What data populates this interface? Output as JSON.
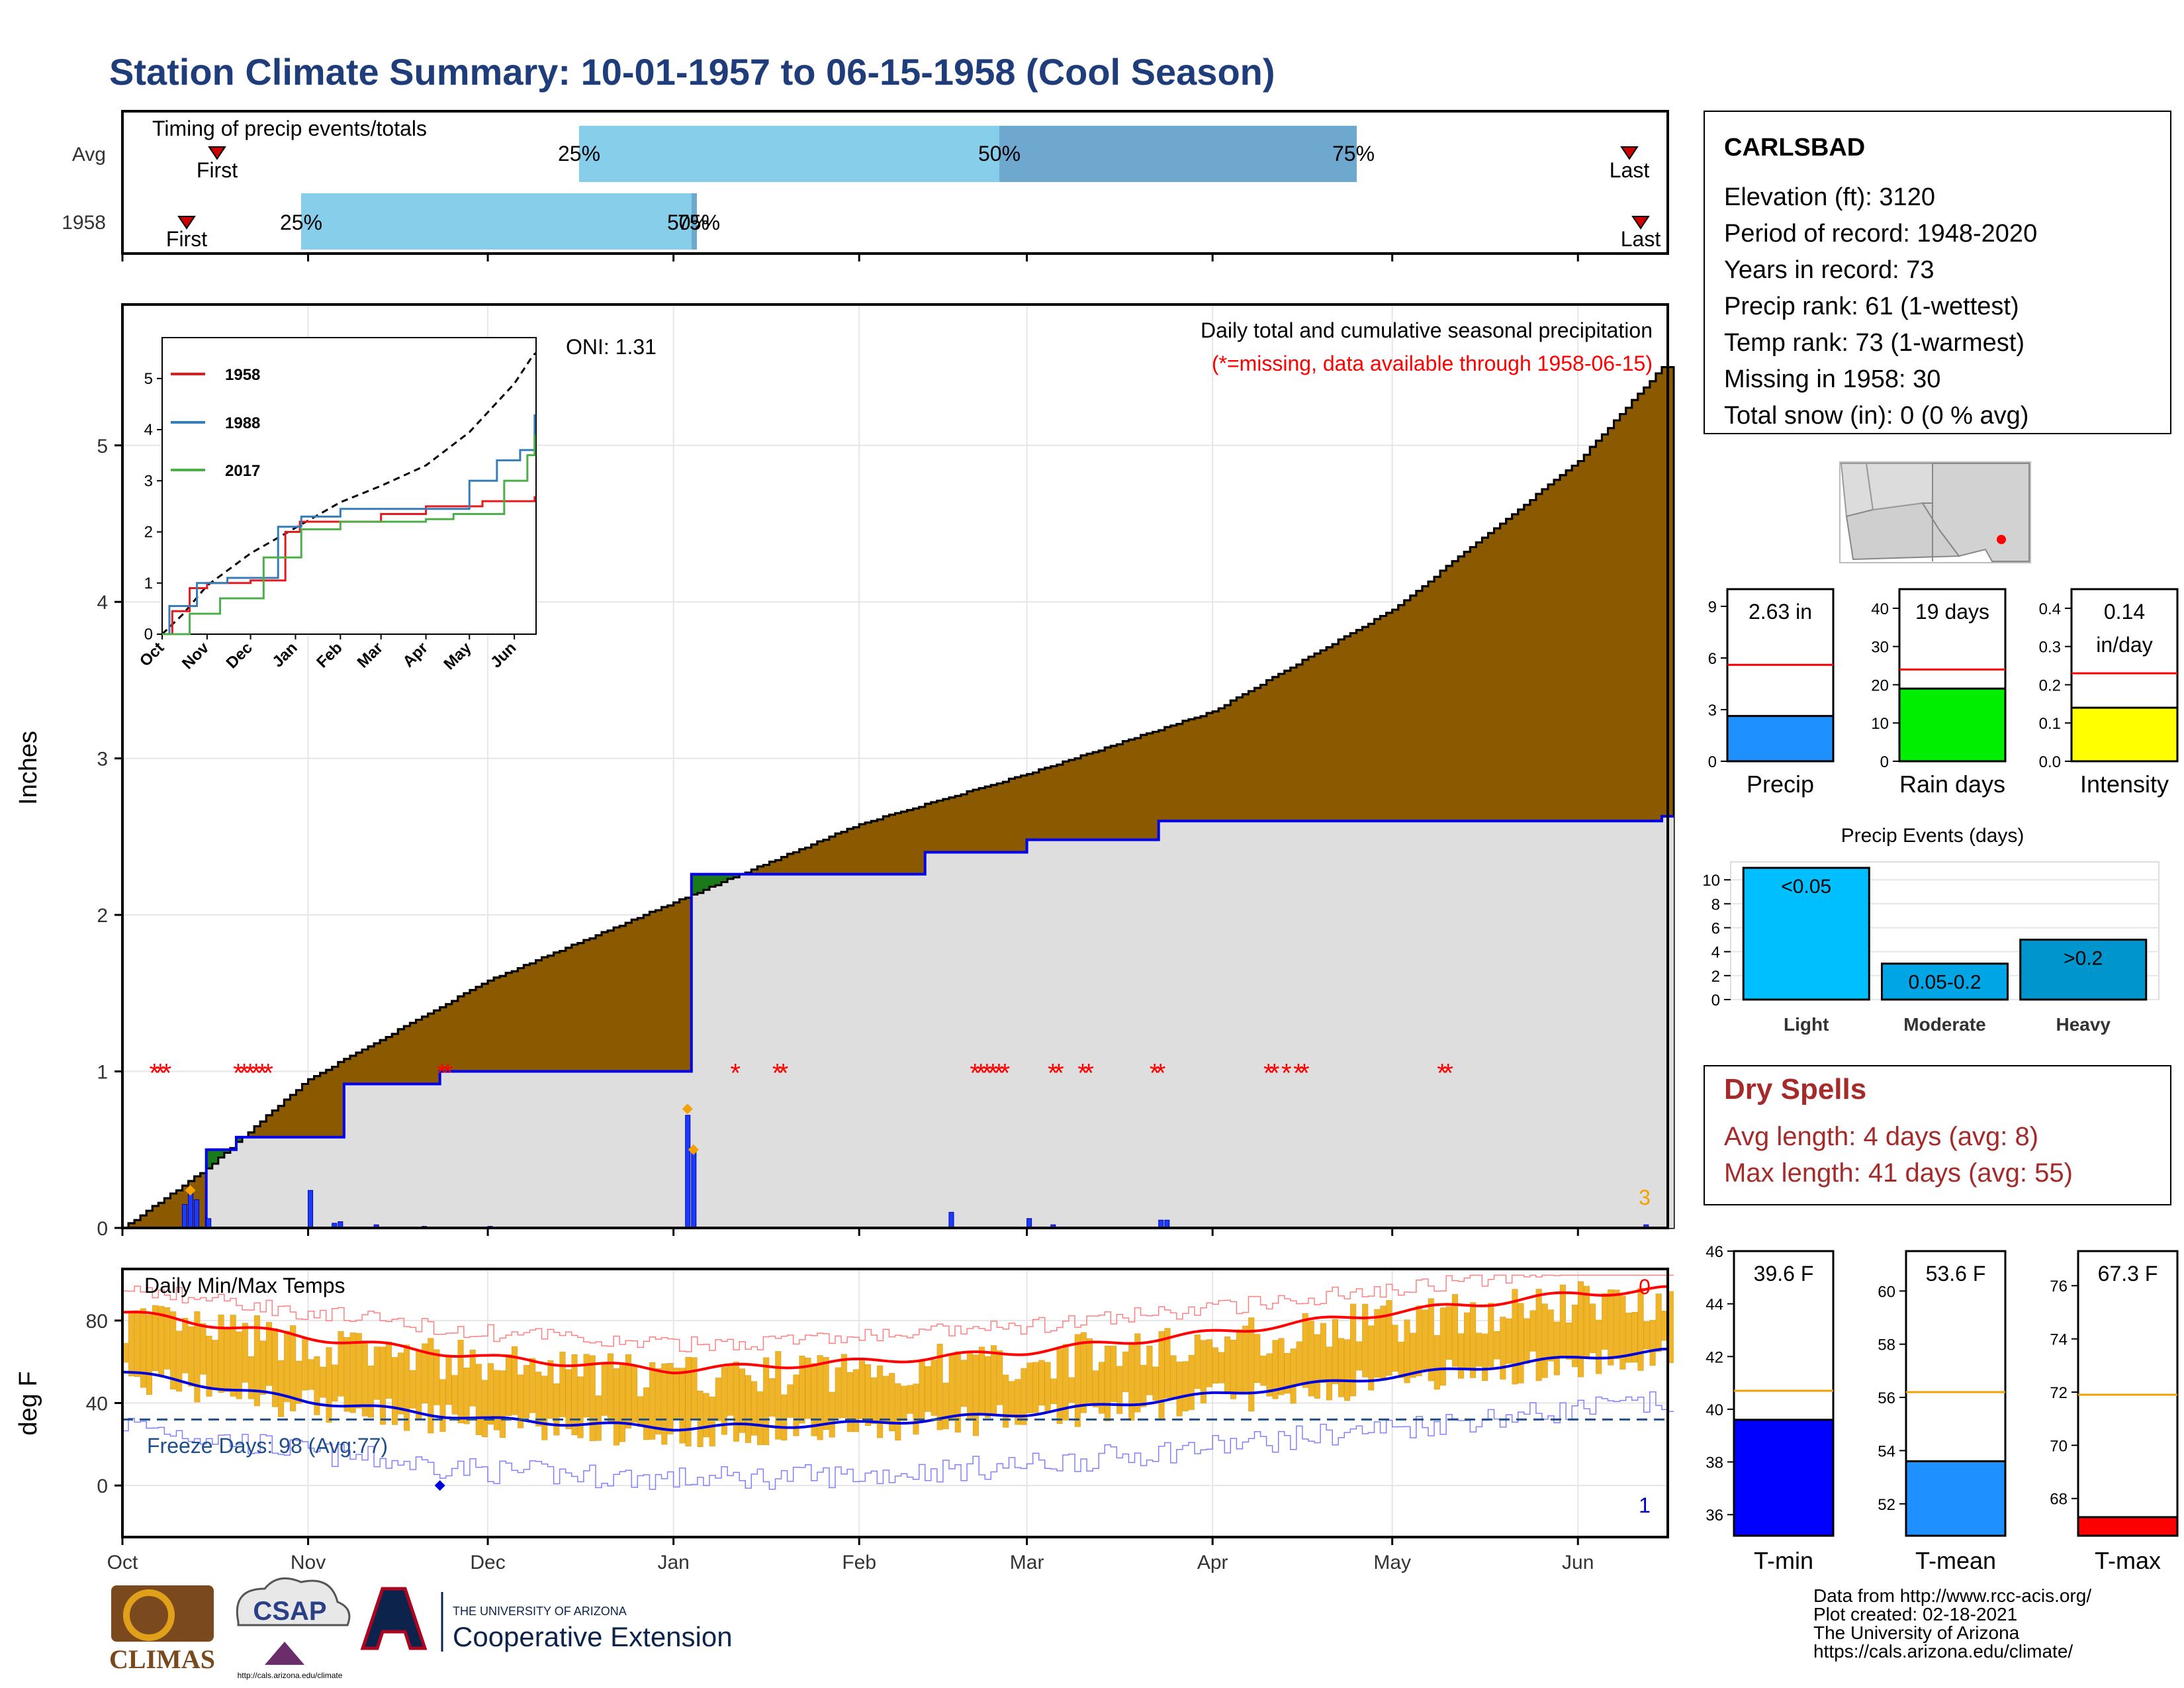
{
  "title": "Station Climate Summary: 10-01-1957 to 06-15-1958 (Cool Season)",
  "timing": {
    "label": "Timing of precip events/totals",
    "rows": [
      {
        "name": "Avg",
        "first": "First",
        "last": "Last",
        "p25_label": "25%",
        "p50_label": "50%",
        "p75_label": "75%"
      },
      {
        "name": "1958",
        "first": "First",
        "last": "Last",
        "p25_label": "25%",
        "p50_label": "50%",
        "p75_label": "75%"
      }
    ]
  },
  "station": {
    "name": "CARLSBAD",
    "lines": [
      "Elevation (ft): 3120",
      "Period of record: 1948-2020",
      "Years in record: 73",
      "Precip rank: 61 (1-wettest)",
      "Temp rank: 73 (1-warmest)",
      "Missing in 1958: 30",
      "Total snow (in): 0 (0 % avg)"
    ]
  },
  "precip_panel": {
    "ylabel": "Inches",
    "oni": "ONI: 1.31",
    "note1": "Daily total and cumulative seasonal precipitation",
    "note2": "(*=missing, data available through 1958-06-15)",
    "count_label": "3",
    "yticks": [
      "0",
      "1",
      "2",
      "3",
      "4",
      "5"
    ]
  },
  "inset": {
    "legend": [
      "1958",
      "1988",
      "2017"
    ],
    "legend_colors": [
      "#e41a1c",
      "#377eb8",
      "#4daf4a"
    ],
    "yticks": [
      "0",
      "1",
      "2",
      "3",
      "4",
      "5"
    ],
    "xticks": [
      "Oct",
      "Nov",
      "Dec",
      "Jan",
      "Feb",
      "Mar",
      "Apr",
      "May",
      "Jun"
    ]
  },
  "temp_panel": {
    "ylabel": "deg F",
    "title": "Daily Min/Max Temps",
    "freeze": "Freeze Days: 98 (Avg:77)",
    "count_top": "0",
    "count_bottom": "1",
    "yticks": [
      "0",
      "40",
      "80"
    ]
  },
  "x_months": [
    "Oct",
    "Nov",
    "Dec",
    "Jan",
    "Feb",
    "Mar",
    "Apr",
    "May",
    "Jun"
  ],
  "mini_bars": [
    {
      "label": "Precip",
      "value_label": "2.63 in",
      "value": 2.63,
      "avg": 5.6,
      "yticks": [
        "0",
        "3",
        "6",
        "9"
      ],
      "ymax": 10,
      "color": "#1e90ff"
    },
    {
      "label": "Rain days",
      "value_label": "19 days",
      "value": 19,
      "avg": 24,
      "yticks": [
        "0",
        "10",
        "20",
        "30",
        "40"
      ],
      "ymax": 45,
      "color": "#00ee00"
    },
    {
      "label": "Intensity",
      "value_label": "0.14",
      "value_label2": "in/day",
      "value": 0.14,
      "avg": 0.23,
      "yticks": [
        "0.0",
        "0.1",
        "0.2",
        "0.3",
        "0.4"
      ],
      "ymax": 0.45,
      "color": "#ffff00"
    }
  ],
  "precip_events": {
    "title": "Precip Events (days)",
    "categories": [
      "Light",
      "Moderate",
      "Heavy"
    ],
    "labels": [
      "<0.05",
      "0.05-0.2",
      ">0.2"
    ],
    "values": [
      11,
      3,
      5
    ],
    "yticks": [
      "0",
      "2",
      "4",
      "6",
      "8",
      "10"
    ],
    "colors": [
      "#00bfff",
      "#00a5e6",
      "#0095cc"
    ]
  },
  "dry_spells": {
    "title": "Dry Spells",
    "avg": "Avg length: 4 days (avg: 8)",
    "max": "Max length: 41 days (avg: 55)"
  },
  "temp_bars": [
    {
      "label": "T-min",
      "value_label": "39.6 F",
      "value": 39.6,
      "avg": 40.7,
      "ymin": 35.2,
      "ymax": 46,
      "yticks": [
        "36",
        "38",
        "40",
        "42",
        "44",
        "46"
      ],
      "color": "#0000ff"
    },
    {
      "label": "T-mean",
      "value_label": "53.6 F",
      "value": 53.6,
      "avg": 56.2,
      "ymin": 50.8,
      "ymax": 61.5,
      "yticks": [
        "52",
        "54",
        "56",
        "58",
        "60"
      ],
      "color": "#1e90ff"
    },
    {
      "label": "T-max",
      "value_label": "67.3 F",
      "value": 67.3,
      "avg": 71.9,
      "ymin": 66.6,
      "ymax": 77.3,
      "yticks": [
        "68",
        "70",
        "72",
        "74",
        "76"
      ],
      "color": "#ff0000"
    }
  ],
  "credits": [
    "Data from http://www.rcc-acis.org/",
    "Plot created: 02-18-2021",
    "The University of Arizona",
    "https://cals.arizona.edu/climate/"
  ],
  "logos": {
    "climas": "CLIMAS",
    "csap": "CSAP",
    "csap_url": "http://cals.arizona.edu/climate",
    "ua_small": "THE UNIVERSITY OF ARIZONA",
    "ua_big": "Cooperative Extension"
  },
  "chart_data": [
    {
      "type": "area",
      "title": "Daily total and cumulative seasonal precipitation",
      "ylabel": "Inches",
      "ylim": [
        0,
        5.9
      ],
      "x_range": [
        "1957-10-01",
        "1958-06-15"
      ],
      "series": [
        {
          "name": "Avg",
          "x": [
            "1957-10-01",
            "1957-10-15",
            "1957-11-01",
            "1957-12-01",
            "1958-01-01",
            "1958-02-01",
            "1958-03-01",
            "1958-04-01",
            "1958-05-01",
            "1958-06-01",
            "1958-06-15"
          ],
          "values": [
            0,
            0.38,
            0.95,
            1.58,
            2.08,
            2.58,
            2.9,
            3.3,
            3.95,
            4.9,
            5.5
          ]
        },
        {
          "name": "1958",
          "x": [
            "1957-10-01",
            "1957-10-12",
            "1957-10-15",
            "1957-10-20",
            "1957-11-01",
            "1957-11-07",
            "1957-11-23",
            "1958-01-03",
            "1958-01-04",
            "1958-01-10",
            "1958-02-12",
            "1958-03-01",
            "1958-03-23",
            "1958-06-01",
            "1958-06-15"
          ],
          "values": [
            0,
            0,
            0.5,
            0.58,
            0.58,
            0.92,
            1.0,
            1.0,
            2.26,
            2.26,
            2.4,
            2.48,
            2.6,
            2.6,
            2.63
          ]
        }
      ],
      "annotations": {
        "oni": 1.31
      }
    },
    {
      "type": "line",
      "title": "Daily Min/Max Temps",
      "ylabel": "deg F",
      "ylim": [
        -25,
        105
      ],
      "x_range": [
        "1957-10-01",
        "1958-06-15"
      ],
      "series": [
        {
          "name": "avg max",
          "x": [
            "1957-10-01",
            "1957-11-01",
            "1957-12-01",
            "1958-01-01",
            "1958-02-01",
            "1958-03-01",
            "1958-04-01",
            "1958-05-01",
            "1958-06-01",
            "1958-06-15"
          ],
          "values": [
            84,
            72,
            62,
            56,
            60,
            65,
            74,
            84,
            93,
            95
          ]
        },
        {
          "name": "avg min",
          "x": [
            "1957-10-01",
            "1957-11-01",
            "1957-12-01",
            "1958-01-01",
            "1958-02-01",
            "1958-03-01",
            "1958-04-01",
            "1958-05-01",
            "1958-06-01",
            "1958-06-15"
          ],
          "values": [
            55,
            41,
            32,
            28,
            30,
            35,
            44,
            53,
            62,
            65
          ]
        },
        {
          "name": "Freeze threshold",
          "values": [
            32
          ]
        }
      ],
      "freeze_days": 98,
      "freeze_days_avg": 77
    },
    {
      "type": "bar",
      "title": "Precip Events (days)",
      "categories": [
        "Light",
        "Moderate",
        "Heavy"
      ],
      "values": [
        11,
        3,
        5
      ],
      "ylim": [
        0,
        11.5
      ]
    }
  ]
}
